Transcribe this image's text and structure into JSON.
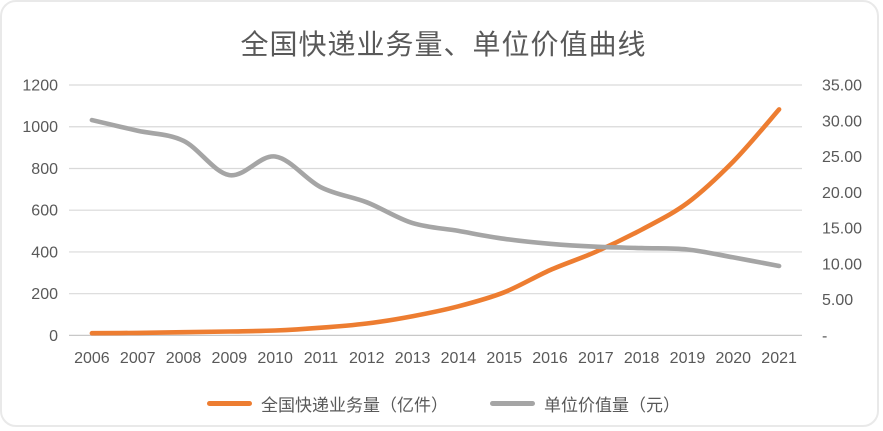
{
  "colors": {
    "volume_line": "#ED7D31",
    "unit_value_line": "#A5A5A5",
    "gridline": "#D9D9D9",
    "axis_line": "#C8C8C8",
    "text": "#595959",
    "card_border": "#E9E9E9"
  },
  "chart_data": {
    "type": "line",
    "title": "全国快递业务量、单位价值曲线",
    "smooth": true,
    "grid": true,
    "legend_position": "bottom",
    "categories": [
      "2006",
      "2007",
      "2008",
      "2009",
      "2010",
      "2011",
      "2012",
      "2013",
      "2014",
      "2015",
      "2016",
      "2017",
      "2018",
      "2019",
      "2020",
      "2021"
    ],
    "series": [
      {
        "name": "全国快递业务量（亿件）",
        "axis": "left",
        "color": "#ED7D31",
        "values": [
          10.6,
          12.0,
          15.1,
          18.6,
          23.4,
          36.7,
          56.9,
          91.9,
          139.6,
          206.7,
          312.8,
          400.6,
          507.1,
          635.2,
          833.6,
          1083.0
        ]
      },
      {
        "name": "单位价值量（元）",
        "axis": "right",
        "color": "#A5A5A5",
        "values": [
          30.1,
          28.6,
          27.2,
          22.4,
          25.0,
          20.7,
          18.6,
          15.7,
          14.6,
          13.5,
          12.8,
          12.4,
          12.2,
          12.0,
          10.9,
          9.7
        ]
      }
    ],
    "left_axis": {
      "min": 0,
      "max": 1200,
      "step": 200,
      "tick_labels": [
        "1200",
        "1000",
        "800",
        "600",
        "400",
        "200",
        "0"
      ]
    },
    "right_axis": {
      "min": 0,
      "max": 35,
      "step": 5,
      "tick_labels": [
        "35.00",
        "30.00",
        "25.00",
        "20.00",
        "15.00",
        "10.00",
        "5.00",
        "-"
      ]
    }
  }
}
